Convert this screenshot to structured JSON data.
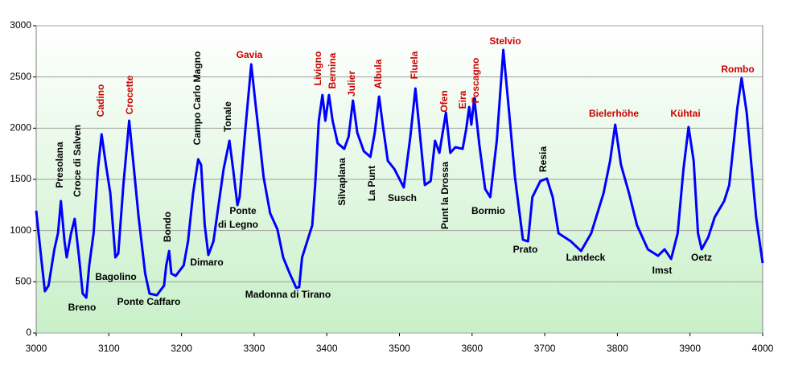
{
  "chart_data": {
    "type": "line",
    "x": [
      3000,
      3008,
      3012,
      3017,
      3025,
      3030,
      3034,
      3039,
      3042,
      3048,
      3053,
      3059,
      3064,
      3069,
      3073,
      3079,
      3085,
      3090,
      3096,
      3102,
      3109,
      3113,
      3120,
      3128,
      3134,
      3141,
      3150,
      3156,
      3166,
      3176,
      3179,
      3183,
      3186,
      3192,
      3203,
      3209,
      3216,
      3223,
      3227,
      3232,
      3237,
      3244,
      3251,
      3258,
      3266,
      3271,
      3277,
      3280,
      3288,
      3296,
      3302,
      3307,
      3313,
      3322,
      3332,
      3340,
      3349,
      3358,
      3362,
      3366,
      3373,
      3380,
      3384,
      3389,
      3394,
      3398,
      3403,
      3408,
      3415,
      3424,
      3430,
      3436,
      3442,
      3451,
      3460,
      3466,
      3472,
      3477,
      3484,
      3493,
      3506,
      3515,
      3522,
      3528,
      3535,
      3543,
      3549,
      3555,
      3564,
      3570,
      3577,
      3587,
      3592,
      3596,
      3599,
      3603,
      3610,
      3618,
      3625,
      3634,
      3643,
      3650,
      3659,
      3670,
      3677,
      3683,
      3694,
      3703,
      3711,
      3719,
      3736,
      3750,
      3764,
      3781,
      3790,
      3797,
      3805,
      3816,
      3827,
      3842,
      3856,
      3865,
      3874,
      3883,
      3891,
      3898,
      3905,
      3911,
      3916,
      3925,
      3934,
      3947,
      3954,
      3961,
      3965,
      3971,
      3978,
      3984,
      3991,
      4000
    ],
    "series": [
      {
        "color": "#0000ff",
        "values": [
          1194,
          660,
          408,
          463,
          817,
          974,
          1288,
          895,
          738,
          974,
          1115,
          738,
          385,
          346,
          660,
          974,
          1602,
          1940,
          1641,
          1366,
          738,
          777,
          1445,
          2073,
          1641,
          1131,
          581,
          385,
          369,
          463,
          660,
          801,
          581,
          558,
          660,
          895,
          1366,
          1696,
          1641,
          1052,
          762,
          895,
          1249,
          1602,
          1877,
          1602,
          1249,
          1327,
          1995,
          2623,
          2230,
          1916,
          1523,
          1170,
          1013,
          738,
          581,
          440,
          448,
          738,
          895,
          1052,
          1445,
          2073,
          2324,
          2073,
          2324,
          2073,
          1853,
          1798,
          1916,
          2270,
          1955,
          1775,
          1720,
          1955,
          2309,
          2034,
          1681,
          1602,
          1421,
          1916,
          2387,
          1955,
          1445,
          1484,
          1877,
          1759,
          2152,
          1759,
          1814,
          1798,
          1995,
          2207,
          2034,
          2293,
          1838,
          1406,
          1327,
          1877,
          2764,
          2230,
          1523,
          911,
          895,
          1327,
          1484,
          1508,
          1327,
          974,
          895,
          801,
          974,
          1366,
          1681,
          2034,
          1641,
          1366,
          1052,
          817,
          754,
          817,
          723,
          974,
          1602,
          2011,
          1681,
          974,
          817,
          934,
          1131,
          1288,
          1445,
          1916,
          2191,
          2489,
          2152,
          1681,
          1131,
          683
        ]
      }
    ],
    "xlim": [
      3000,
      4000
    ],
    "xticks": [
      3000,
      3100,
      3200,
      3300,
      3400,
      3500,
      3600,
      3700,
      3800,
      3900,
      4000
    ],
    "ylim": [
      0,
      3000
    ],
    "yticks": [
      0,
      500,
      1000,
      1500,
      2000,
      2500,
      3000
    ],
    "grid": true,
    "annotations": [
      {
        "text": "Presolana",
        "color": "#000000"
      },
      {
        "text": "Croce di Salven",
        "color": "#000000"
      },
      {
        "text": "Cadino",
        "color": "#cc0000"
      },
      {
        "text": "Crocette",
        "color": "#cc0000"
      },
      {
        "text": "Bondo",
        "color": "#000000"
      },
      {
        "text": "Campo Carlo Magno",
        "color": "#000000"
      },
      {
        "text": "Tonale",
        "color": "#000000"
      },
      {
        "text": "Livigno",
        "color": "#cc0000"
      },
      {
        "text": "Bernina",
        "color": "#cc0000"
      },
      {
        "text": "Julier",
        "color": "#cc0000"
      },
      {
        "text": "Albula",
        "color": "#cc0000"
      },
      {
        "text": "Fluela",
        "color": "#cc0000"
      },
      {
        "text": "Ofen",
        "color": "#cc0000"
      },
      {
        "text": "Eira",
        "color": "#cc0000"
      },
      {
        "text": "Foscagno",
        "color": "#cc0000"
      },
      {
        "text": "Silvaplana",
        "color": "#000000"
      },
      {
        "text": "La Punt",
        "color": "#000000"
      },
      {
        "text": "Punt la Drossa",
        "color": "#000000"
      },
      {
        "text": "Resia",
        "color": "#000000"
      },
      {
        "text": "Breno",
        "color": "#000000"
      },
      {
        "text": "Bagolino",
        "color": "#000000"
      },
      {
        "text": "Ponte Caffaro",
        "color": "#000000"
      },
      {
        "text": "Dimaro",
        "color": "#000000"
      },
      {
        "text": "Ponte",
        "color": "#000000"
      },
      {
        "text": "di Legno",
        "color": "#000000"
      },
      {
        "text": "Gavia",
        "color": "#cc0000"
      },
      {
        "text": "Madonna di Tirano",
        "color": "#000000"
      },
      {
        "text": "Susch",
        "color": "#000000"
      },
      {
        "text": "Stelvio",
        "color": "#cc0000"
      },
      {
        "text": "Bormio",
        "color": "#000000"
      },
      {
        "text": "Prato",
        "color": "#000000"
      },
      {
        "text": "Landeck",
        "color": "#000000"
      },
      {
        "text": "Bielerhöhe",
        "color": "#cc0000"
      },
      {
        "text": "Imst",
        "color": "#000000"
      },
      {
        "text": "Kühtai",
        "color": "#cc0000"
      },
      {
        "text": "Oetz",
        "color": "#000000"
      },
      {
        "text": "Rombo",
        "color": "#cc0000"
      }
    ]
  }
}
